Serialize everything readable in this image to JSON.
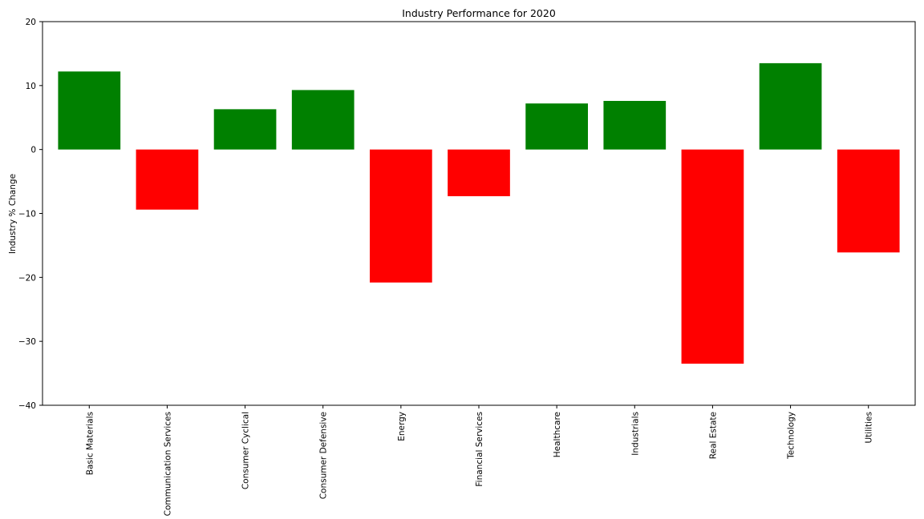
{
  "chart_data": {
    "type": "bar",
    "title": "Industry Performance for 2020",
    "xlabel": "",
    "ylabel": "Industry % Change",
    "categories": [
      "Basic Materials",
      "Communication Services",
      "Consumer Cyclical",
      "Consumer Defensive",
      "Energy",
      "Financial Services",
      "Healthcare",
      "Industrials",
      "Real Estate",
      "Technology",
      "Utilities"
    ],
    "values": [
      12.2,
      -9.4,
      6.3,
      9.3,
      -20.8,
      -7.3,
      7.2,
      7.6,
      -33.5,
      13.5,
      -16.1
    ],
    "ylim": [
      -40,
      20
    ],
    "yticks": [
      -40,
      -30,
      -20,
      -10,
      0,
      10,
      20
    ],
    "ytick_labels": [
      "−40",
      "−30",
      "−20",
      "−10",
      "0",
      "10",
      "20"
    ],
    "grid": false,
    "legend": "none",
    "colors": {
      "positive": "#008000",
      "negative": "#ff0000",
      "axes": "#000000"
    }
  }
}
